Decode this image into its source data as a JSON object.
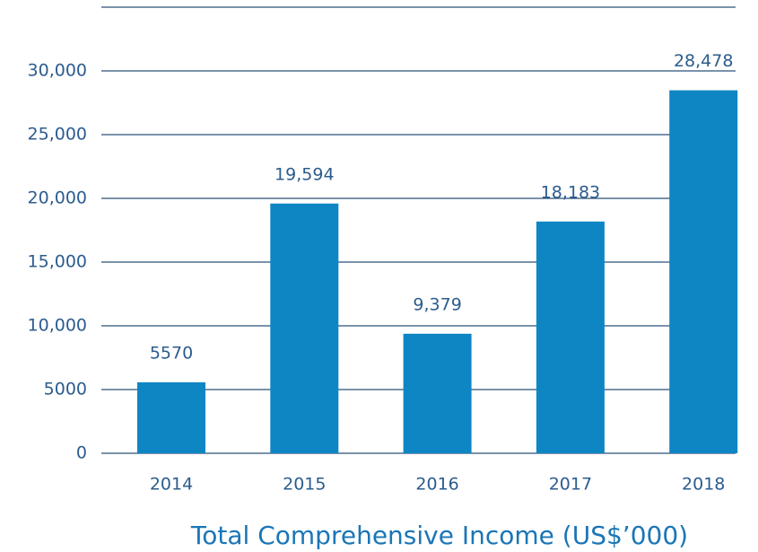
{
  "chart_data": {
    "type": "bar",
    "title": "Total Comprehensive Income (US$’000)",
    "categories": [
      "2014",
      "2015",
      "2016",
      "2017",
      "2018"
    ],
    "values": [
      5570,
      19594,
      9379,
      18183,
      28478
    ],
    "value_labels": [
      "5570",
      "19,594",
      "9,379",
      "18,183",
      "28,478"
    ],
    "color": "#0e86c4",
    "ylim": [
      0,
      35000
    ],
    "yticks": [
      0,
      5000,
      {
        "value": 10000,
        "label": "10,000"
      },
      {
        "value": 15000,
        "label": "15,000"
      },
      {
        "value": 20000,
        "label": "20,000"
      },
      {
        "value": 25000,
        "label": "25,000"
      },
      {
        "value": 30000,
        "label": "30,000"
      }
    ],
    "grid": true
  }
}
